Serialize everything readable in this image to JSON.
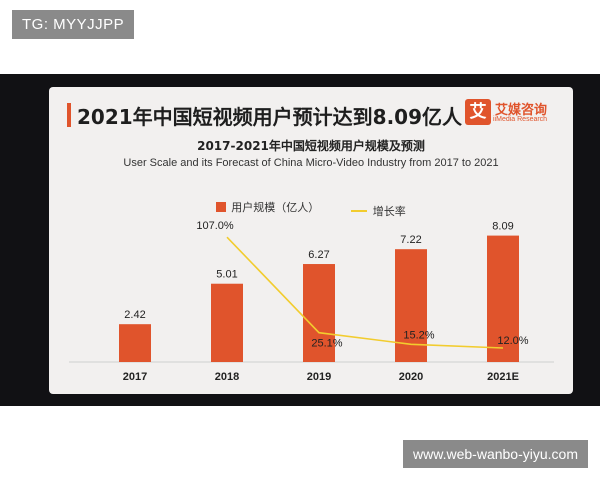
{
  "watermark_top": "TG: MYYJJPP",
  "watermark_bottom": "www.web-wanbo-yiyu.com",
  "slide": {
    "title": "2021年中国短视频用户预计达到8.09亿人",
    "brand_icon": "艾",
    "brand_name": "艾媒咨询",
    "brand_sub": "iiMedia Research"
  },
  "chart_data": {
    "type": "bar",
    "title": "2017-2021年中国短视频用户规模及预测",
    "subtitle": "User Scale and its Forecast of China Micro-Video Industry from 2017 to 2021",
    "categories": [
      "2017",
      "2018",
      "2019",
      "2020",
      "2021E"
    ],
    "series": [
      {
        "name": "用户规模（亿人）",
        "type": "bar",
        "values": [
          2.42,
          5.01,
          6.27,
          7.22,
          8.09
        ],
        "color": "#e0542c"
      },
      {
        "name": "增长率",
        "type": "line",
        "values": [
          null,
          107.0,
          25.1,
          15.2,
          12.0
        ],
        "color": "#f2cc2e"
      }
    ],
    "bar_labels": [
      "2.42",
      "5.01",
      "6.27",
      "7.22",
      "8.09"
    ],
    "line_labels": [
      "",
      "107.0%",
      "25.1%",
      "15.2%",
      "12.0%"
    ],
    "ylim": [
      0,
      10
    ],
    "ylim_rate": [
      0,
      120
    ],
    "legend_position": "top-center",
    "grid": false
  }
}
